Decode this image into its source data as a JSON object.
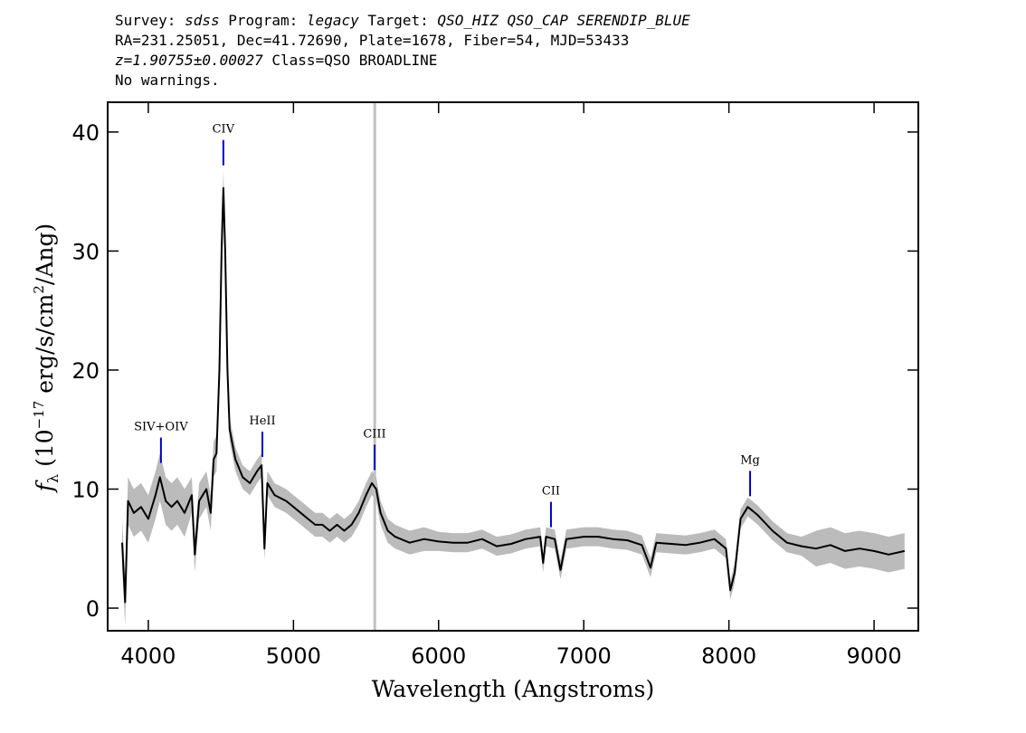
{
  "chart_data": {
    "type": "line",
    "header_lines": [
      [
        {
          "text": "Survey: "
        },
        {
          "text": "sdss",
          "italic": true
        },
        {
          "text": " Program: "
        },
        {
          "text": "legacy",
          "italic": true
        },
        {
          "text": " Target: "
        },
        {
          "text": "QSO_HIZ QSO_CAP SERENDIP_BLUE",
          "italic": true
        }
      ],
      [
        {
          "text": "RA=231.25051, Dec=41.72690, Plate=1678, Fiber=54, MJD=53433"
        }
      ],
      [
        {
          "text": "z=1.90755±0.00027",
          "italic": true
        },
        {
          "text": " Class=QSO BROADLINE"
        }
      ],
      [
        {
          "text": "No warnings."
        }
      ]
    ],
    "x_label": "Wavelength (Angstroms)",
    "y_label": [
      {
        "text": "f",
        "italic": true
      },
      {
        "text": "λ",
        "sub": true
      },
      {
        "text": " (10"
      },
      {
        "text": "−17",
        "sup": true
      },
      {
        "text": " erg/s/cm"
      },
      {
        "text": "2",
        "sup": true
      },
      {
        "text": "/Ang)"
      }
    ],
    "xlim": [
      3720,
      9305
    ],
    "ylim": [
      -1.9,
      42.5
    ],
    "xticks": [
      4000,
      5000,
      6000,
      7000,
      8000,
      9000
    ],
    "yticks": [
      0,
      10,
      20,
      30,
      40
    ],
    "color": "#000000",
    "error_color": "#bbbbbb",
    "vline": 5560,
    "vline_color": "#c0c0c0",
    "line_color": "#0000cc",
    "x": [
      3820,
      3840,
      3860,
      3900,
      3950,
      4000,
      4050,
      4080,
      4120,
      4160,
      4200,
      4250,
      4300,
      4320,
      4350,
      4400,
      4430,
      4450,
      4470,
      4490,
      4505,
      4517,
      4530,
      4545,
      4560,
      4600,
      4650,
      4700,
      4750,
      4780,
      4800,
      4820,
      4870,
      4950,
      5000,
      5050,
      5100,
      5150,
      5200,
      5250,
      5300,
      5350,
      5400,
      5450,
      5500,
      5540,
      5570,
      5600,
      5650,
      5700,
      5800,
      5900,
      6000,
      6100,
      6200,
      6300,
      6400,
      6500,
      6600,
      6700,
      6720,
      6740,
      6800,
      6840,
      6880,
      7000,
      7100,
      7200,
      7300,
      7400,
      7460,
      7500,
      7600,
      7700,
      7800,
      7900,
      7980,
      8010,
      8040,
      8080,
      8130,
      8200,
      8300,
      8400,
      8500,
      8600,
      8700,
      8800,
      8900,
      9000,
      9100,
      9210
    ],
    "values": [
      5.5,
      0.5,
      9,
      8,
      8.5,
      7.5,
      9.5,
      11,
      9,
      8.5,
      9,
      8,
      9.5,
      4.5,
      9,
      10,
      8,
      12.5,
      13,
      20,
      30,
      35.3,
      30,
      20,
      15,
      12.5,
      11,
      10.5,
      11.5,
      12,
      5,
      10.5,
      9.5,
      9,
      8.5,
      8,
      7.5,
      7,
      7,
      6.5,
      7,
      6.5,
      7,
      8,
      9.5,
      10.5,
      10,
      8,
      6.5,
      6,
      5.5,
      5.8,
      5.6,
      5.5,
      5.5,
      5.8,
      5.2,
      5.4,
      5.8,
      6,
      3.8,
      6,
      5.8,
      3.2,
      5.8,
      6,
      6,
      5.8,
      5.7,
      5.3,
      3.4,
      5.5,
      5.4,
      5.3,
      5.5,
      5.8,
      5,
      1.5,
      3,
      7.5,
      8.5,
      7.8,
      6.5,
      5.5,
      5.2,
      5,
      5.3,
      4.8,
      5,
      4.8,
      4.5,
      4.8
    ],
    "errors": [
      2,
      2,
      2,
      2,
      2,
      2,
      2,
      2,
      2,
      2,
      2,
      2,
      1.5,
      1.5,
      1.5,
      1.5,
      1.5,
      1.5,
      1.5,
      1.5,
      1.5,
      1.5,
      1.5,
      1.5,
      1,
      1,
      1,
      1,
      1,
      1,
      1,
      1,
      1,
      1,
      1,
      1,
      1,
      1,
      1,
      1,
      1,
      1,
      1,
      1,
      1,
      1,
      1,
      1,
      1,
      1,
      1,
      1,
      0.8,
      0.8,
      0.8,
      0.8,
      0.8,
      0.8,
      0.8,
      0.8,
      0.8,
      0.8,
      0.8,
      0.8,
      0.8,
      0.8,
      0.8,
      0.8,
      0.8,
      0.8,
      0.8,
      0.8,
      0.8,
      0.8,
      0.8,
      0.8,
      0.8,
      0.8,
      0.8,
      0.8,
      0.8,
      0.8,
      0.8,
      0.8,
      0.8,
      1.5,
      1.5,
      1.5,
      1.5,
      1.5,
      1.5,
      1.5
    ],
    "lines": [
      {
        "label": "SIV+OIV",
        "x": 4087,
        "y": 12.2
      },
      {
        "label": "CIV",
        "x": 4517,
        "y": 37.2
      },
      {
        "label": "HeII",
        "x": 4786,
        "y": 12.7
      },
      {
        "label": "CIII",
        "x": 5559,
        "y": 11.6
      },
      {
        "label": "CII",
        "x": 6774,
        "y": 6.8
      },
      {
        "label": "Mg",
        "x": 8146,
        "y": 9.4
      }
    ]
  }
}
